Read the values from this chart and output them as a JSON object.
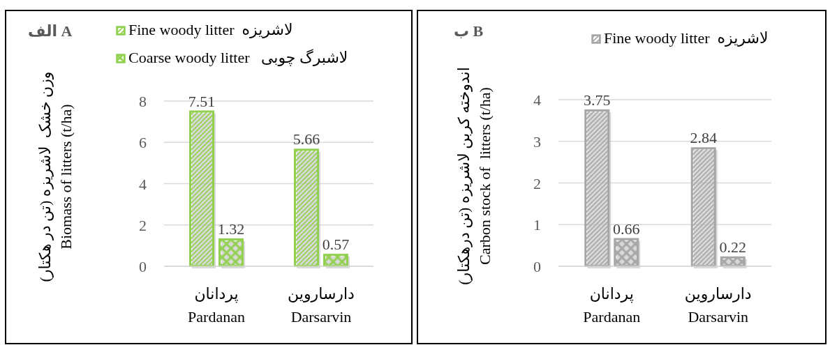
{
  "chart_data": [
    {
      "type": "bar",
      "title": "الف A",
      "ylabel": "وزن خشک  لاشریزه (تن در هکتار)\nBiomass of litters (t/ha)",
      "categories": [
        "پردانان\nPardanan",
        "دارساروین\nDarsarvin"
      ],
      "series": [
        {
          "name": "Fine woody litter  لاشریزه",
          "color": "#92d050",
          "values": [
            7.51,
            5.66
          ]
        },
        {
          "name": "Coarse woody litter   لاشبرگ چوبی",
          "color": "#92d050",
          "values": [
            1.32,
            0.57
          ]
        }
      ],
      "ylim": [
        0,
        8
      ],
      "yticks": [
        0,
        2,
        4,
        6,
        8
      ],
      "grid": "y",
      "legend": "top",
      "data_labels": true
    },
    {
      "type": "bar",
      "title": "ب B",
      "ylabel": "اندوخته کربن لاشریزه (تن درهکتار)\nCarbon stock of  litters (t/ha)",
      "categories": [
        "پردانان\nPardanan",
        "دارساروین\nDarsarvin"
      ],
      "series": [
        {
          "name": "Fine woody litter  لاشریزه",
          "color": "#a6a6a6",
          "values": [
            3.75,
            2.84
          ]
        },
        {
          "color": "#a6a6a6",
          "values": [
            0.66,
            0.22
          ]
        }
      ],
      "ylim": [
        0,
        4
      ],
      "yticks": [
        0,
        1,
        2,
        3,
        4
      ],
      "grid": "y",
      "legend": "top",
      "data_labels": true
    }
  ]
}
